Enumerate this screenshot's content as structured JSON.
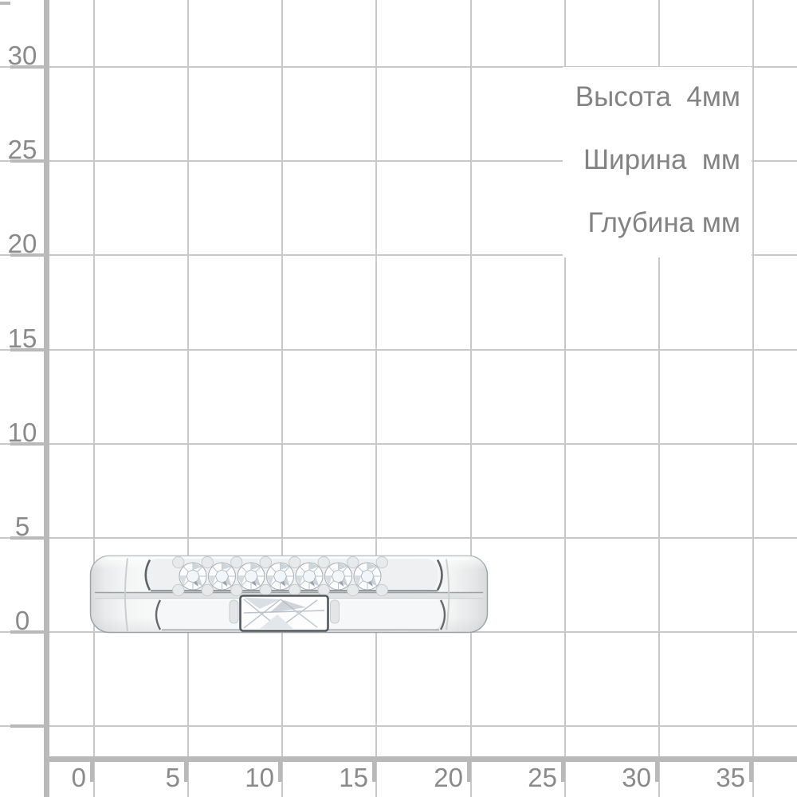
{
  "colors": {
    "background": "#ffffff",
    "grid_line": "#c9c9c9",
    "axis": "#b9b9b9",
    "axis_label": "#8a8a8a",
    "annotation_text": "#838383",
    "panel": "#ffffff",
    "metal_outline": "#9aa0a3",
    "stone_outline": "#54595d"
  },
  "x_axis": {
    "labels": [
      "0",
      "5",
      "10",
      "15",
      "20",
      "25",
      "30",
      "35"
    ]
  },
  "y_axis": {
    "labels": [
      "30",
      "25",
      "20",
      "15",
      "10",
      "5",
      "0"
    ]
  },
  "grid": {
    "mm_per_cell": 5
  },
  "annotations": {
    "lines": [
      {
        "name": "height",
        "text": "Высота  4мм"
      },
      {
        "name": "width",
        "text": "Ширина  мм"
      },
      {
        "name": "depth",
        "text": "Глубина мм"
      }
    ]
  },
  "ring": {
    "round_stones": 7,
    "baguette_stones": 1
  }
}
